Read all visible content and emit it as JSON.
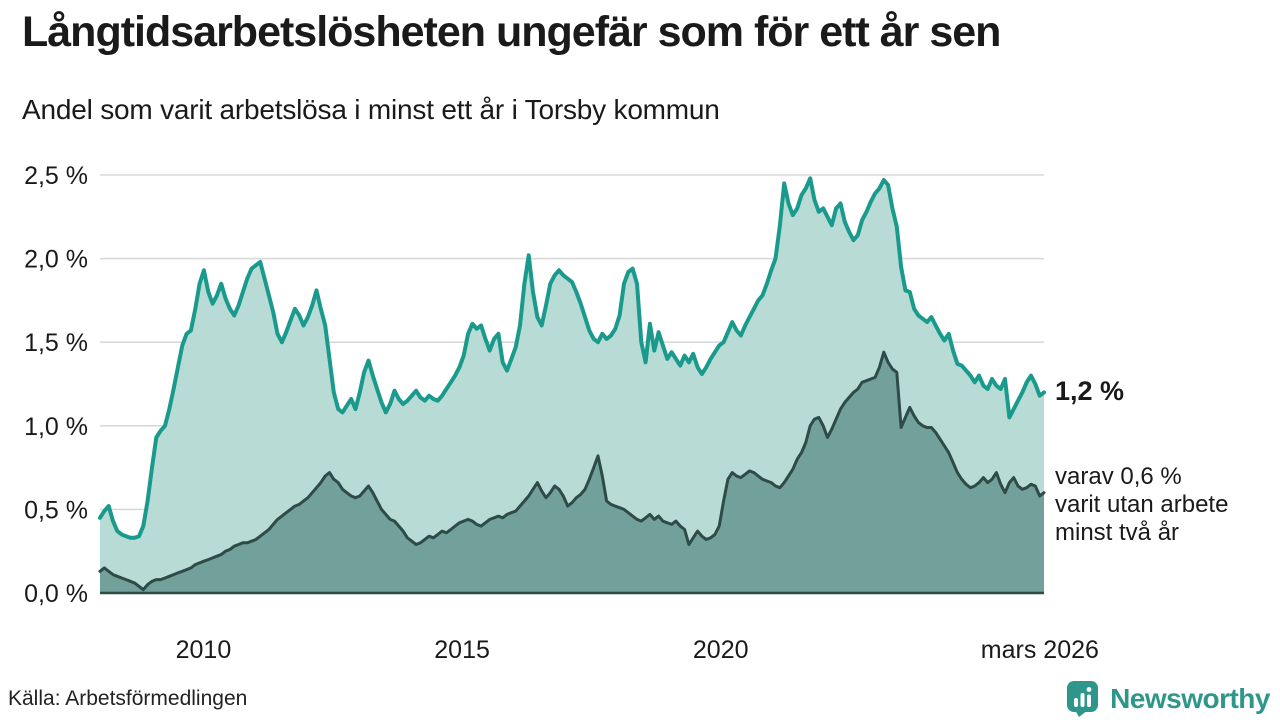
{
  "header": {
    "title": "Långtidsarbetslösheten ungefär som för ett år sen",
    "subtitle": "Andel som varit arbetslösa i minst ett år i Torsby kommun"
  },
  "chart_data": {
    "type": "area",
    "title": "Långtidsarbetslösheten ungefär som för ett år sen",
    "subtitle": "Andel som varit arbetslösa i minst ett år i Torsby kommun",
    "unit": "%",
    "frequency": "monthly",
    "x_start_year": 2008.0,
    "x_end_year": 2026.25,
    "ylim": [
      0,
      2.5
    ],
    "grid": "horizontal",
    "colors": {
      "grid": "#d9d9d9",
      "axis": "#2e4b47",
      "text": "#1a1a1a"
    },
    "y_ticks": [
      {
        "value": 0.0,
        "label": "0,0 %"
      },
      {
        "value": 0.5,
        "label": "0,5 %"
      },
      {
        "value": 1.0,
        "label": "1,0 %"
      },
      {
        "value": 1.5,
        "label": "1,5 %"
      },
      {
        "value": 2.0,
        "label": "2,0 %"
      },
      {
        "value": 2.5,
        "label": "2,5 %"
      }
    ],
    "x_ticks": [
      {
        "year": 2010,
        "label": "2010"
      },
      {
        "year": 2015,
        "label": "2015"
      },
      {
        "year": 2020,
        "label": "2020"
      },
      {
        "year": 2026.17,
        "label": "mars 2026"
      }
    ],
    "series": [
      {
        "name": "Arbetslösa minst ett år",
        "line_color": "#1a9a8c",
        "fill_color": "#b8dcd5",
        "line_width": 4,
        "latest_value": 1.2,
        "values": [
          0.45,
          0.49,
          0.52,
          0.43,
          0.37,
          0.35,
          0.34,
          0.33,
          0.33,
          0.34,
          0.4,
          0.55,
          0.75,
          0.93,
          0.97,
          1.0,
          1.1,
          1.22,
          1.35,
          1.48,
          1.55,
          1.57,
          1.7,
          1.85,
          1.93,
          1.8,
          1.73,
          1.78,
          1.85,
          1.76,
          1.7,
          1.66,
          1.72,
          1.8,
          1.88,
          1.94,
          1.96,
          1.98,
          1.88,
          1.78,
          1.68,
          1.55,
          1.5,
          1.56,
          1.63,
          1.7,
          1.66,
          1.6,
          1.65,
          1.72,
          1.81,
          1.7,
          1.6,
          1.4,
          1.2,
          1.1,
          1.08,
          1.12,
          1.16,
          1.1,
          1.2,
          1.32,
          1.39,
          1.3,
          1.22,
          1.14,
          1.08,
          1.13,
          1.21,
          1.16,
          1.13,
          1.15,
          1.18,
          1.21,
          1.17,
          1.15,
          1.18,
          1.16,
          1.15,
          1.18,
          1.22,
          1.26,
          1.3,
          1.35,
          1.42,
          1.55,
          1.61,
          1.58,
          1.6,
          1.52,
          1.45,
          1.52,
          1.55,
          1.38,
          1.33,
          1.4,
          1.47,
          1.6,
          1.85,
          2.02,
          1.8,
          1.65,
          1.6,
          1.72,
          1.85,
          1.9,
          1.93,
          1.9,
          1.88,
          1.86,
          1.8,
          1.73,
          1.65,
          1.57,
          1.52,
          1.5,
          1.55,
          1.52,
          1.54,
          1.58,
          1.66,
          1.85,
          1.92,
          1.94,
          1.85,
          1.5,
          1.38,
          1.61,
          1.45,
          1.56,
          1.48,
          1.4,
          1.44,
          1.4,
          1.36,
          1.42,
          1.38,
          1.43,
          1.35,
          1.31,
          1.35,
          1.4,
          1.44,
          1.48,
          1.5,
          1.56,
          1.62,
          1.57,
          1.54,
          1.6,
          1.65,
          1.7,
          1.75,
          1.78,
          1.85,
          1.93,
          2.0,
          2.2,
          2.45,
          2.33,
          2.26,
          2.3,
          2.38,
          2.42,
          2.48,
          2.35,
          2.28,
          2.3,
          2.25,
          2.2,
          2.3,
          2.33,
          2.22,
          2.16,
          2.11,
          2.14,
          2.23,
          2.28,
          2.34,
          2.39,
          2.42,
          2.47,
          2.44,
          2.3,
          2.19,
          1.95,
          1.81,
          1.8,
          1.7,
          1.66,
          1.64,
          1.62,
          1.65,
          1.6,
          1.55,
          1.51,
          1.55,
          1.45,
          1.37,
          1.36,
          1.33,
          1.3,
          1.26,
          1.3,
          1.24,
          1.22,
          1.28,
          1.24,
          1.22,
          1.28,
          1.05,
          1.1,
          1.15,
          1.2,
          1.26,
          1.3,
          1.25,
          1.18,
          1.2
        ]
      },
      {
        "name": "varav arbetslösa minst två år",
        "line_color": "#2e4b47",
        "fill_color": "#72a09a",
        "line_width": 3,
        "latest_value": 0.6,
        "values": [
          0.13,
          0.15,
          0.13,
          0.11,
          0.1,
          0.09,
          0.08,
          0.07,
          0.06,
          0.04,
          0.02,
          0.05,
          0.07,
          0.08,
          0.08,
          0.09,
          0.1,
          0.11,
          0.12,
          0.13,
          0.14,
          0.15,
          0.17,
          0.18,
          0.19,
          0.2,
          0.21,
          0.22,
          0.23,
          0.25,
          0.26,
          0.28,
          0.29,
          0.3,
          0.3,
          0.31,
          0.32,
          0.34,
          0.36,
          0.38,
          0.41,
          0.44,
          0.46,
          0.48,
          0.5,
          0.52,
          0.53,
          0.55,
          0.57,
          0.6,
          0.63,
          0.66,
          0.7,
          0.72,
          0.68,
          0.66,
          0.62,
          0.6,
          0.58,
          0.57,
          0.58,
          0.61,
          0.64,
          0.6,
          0.55,
          0.5,
          0.47,
          0.44,
          0.43,
          0.4,
          0.37,
          0.33,
          0.31,
          0.29,
          0.3,
          0.32,
          0.34,
          0.33,
          0.35,
          0.37,
          0.36,
          0.38,
          0.4,
          0.42,
          0.43,
          0.44,
          0.43,
          0.41,
          0.4,
          0.42,
          0.44,
          0.45,
          0.46,
          0.45,
          0.47,
          0.48,
          0.49,
          0.52,
          0.55,
          0.58,
          0.62,
          0.66,
          0.61,
          0.57,
          0.6,
          0.64,
          0.62,
          0.58,
          0.52,
          0.54,
          0.57,
          0.59,
          0.62,
          0.68,
          0.75,
          0.82,
          0.7,
          0.55,
          0.53,
          0.52,
          0.51,
          0.5,
          0.48,
          0.46,
          0.44,
          0.43,
          0.45,
          0.47,
          0.44,
          0.46,
          0.43,
          0.42,
          0.41,
          0.43,
          0.4,
          0.38,
          0.29,
          0.33,
          0.37,
          0.34,
          0.32,
          0.33,
          0.35,
          0.4,
          0.55,
          0.68,
          0.72,
          0.7,
          0.69,
          0.71,
          0.73,
          0.72,
          0.7,
          0.68,
          0.67,
          0.66,
          0.64,
          0.63,
          0.66,
          0.7,
          0.74,
          0.8,
          0.84,
          0.9,
          1.0,
          1.04,
          1.05,
          1.0,
          0.93,
          0.98,
          1.04,
          1.1,
          1.14,
          1.17,
          1.2,
          1.22,
          1.26,
          1.27,
          1.28,
          1.29,
          1.35,
          1.44,
          1.38,
          1.34,
          1.32,
          0.99,
          1.05,
          1.11,
          1.06,
          1.02,
          1.0,
          0.99,
          0.99,
          0.96,
          0.92,
          0.88,
          0.84,
          0.78,
          0.72,
          0.68,
          0.65,
          0.63,
          0.64,
          0.66,
          0.69,
          0.66,
          0.68,
          0.72,
          0.65,
          0.6,
          0.66,
          0.69,
          0.64,
          0.62,
          0.63,
          0.65,
          0.64,
          0.58,
          0.6
        ]
      }
    ],
    "annotations": {
      "latest_total": "1,2 %",
      "sub_line1": "varav 0,6 %",
      "sub_line2": "varit utan arbete",
      "sub_line3": "minst två år"
    },
    "legend_position": "none"
  },
  "footer": {
    "source": "Källa: Arbetsförmedlingen",
    "brand": "Newsworthy"
  }
}
